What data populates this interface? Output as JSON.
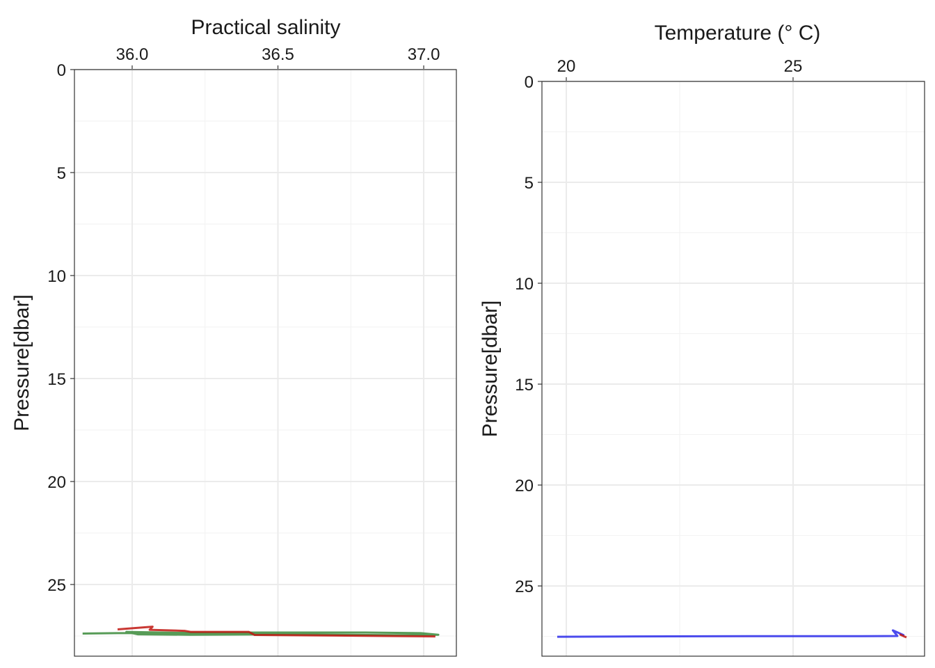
{
  "chart_data": [
    {
      "type": "line",
      "xlabel": "Practical salinity",
      "ylabel": "Pressure[dbar]",
      "xaxis_position": "top",
      "y_reversed": true,
      "grid": true,
      "xlim": [
        35.802,
        37.112
      ],
      "xticks": [
        {
          "value": 36.0,
          "label": "36.0"
        },
        36.5,
        {
          "value": 37.0,
          "label": "37.0"
        }
      ],
      "xminorticks": [
        36.25,
        36.75
      ],
      "ylim": [
        0,
        28.48
      ],
      "yticks": [
        0,
        5,
        10,
        15,
        20,
        25
      ],
      "yminorticks": [
        2.5,
        7.5,
        12.5,
        17.5,
        22.5,
        27.5
      ],
      "series": [
        {
          "color": "#3a8a3a",
          "x": [
            35.83,
            35.95,
            36.2,
            36.5,
            36.8,
            36.99,
            37.05,
            36.9,
            36.5,
            36.2,
            36.02,
            35.98,
            36.1,
            36.3
          ],
          "values": [
            27.38,
            27.36,
            27.34,
            27.33,
            27.33,
            27.36,
            27.44,
            27.46,
            27.42,
            27.44,
            27.42,
            27.3,
            27.33,
            27.38
          ]
        },
        {
          "color": "#c0150f",
          "x": [
            35.95,
            36.07,
            36.06,
            36.18,
            36.2,
            36.4,
            36.42,
            36.7,
            37.04
          ],
          "values": [
            27.18,
            27.05,
            27.2,
            27.25,
            27.3,
            27.3,
            27.45,
            27.48,
            27.52
          ]
        }
      ]
    },
    {
      "type": "line",
      "xlabel": "Temperature (° C)",
      "ylabel": "Pressure[dbar]",
      "xaxis_position": "top",
      "y_reversed": true,
      "grid": true,
      "xlim": [
        19.463,
        27.899
      ],
      "xticks": [
        20,
        25
      ],
      "xminorticks": [
        22.5,
        27.5
      ],
      "ylim": [
        0,
        28.48
      ],
      "yticks": [
        0,
        5,
        10,
        15,
        20,
        25
      ],
      "yminorticks": [
        2.5,
        7.5,
        12.5,
        17.5,
        22.5,
        27.5
      ],
      "series": [
        {
          "color": "#2b2bea",
          "x": [
            19.8,
            21.5,
            24,
            26.5,
            27.3,
            27.2,
            27.3,
            27.45
          ],
          "values": [
            27.52,
            27.5,
            27.49,
            27.49,
            27.48,
            27.2,
            27.3,
            27.45
          ]
        },
        {
          "color": "#c0150f",
          "x": [
            27.35,
            27.45,
            27.5
          ],
          "values": [
            27.4,
            27.5,
            27.55
          ]
        }
      ]
    }
  ]
}
